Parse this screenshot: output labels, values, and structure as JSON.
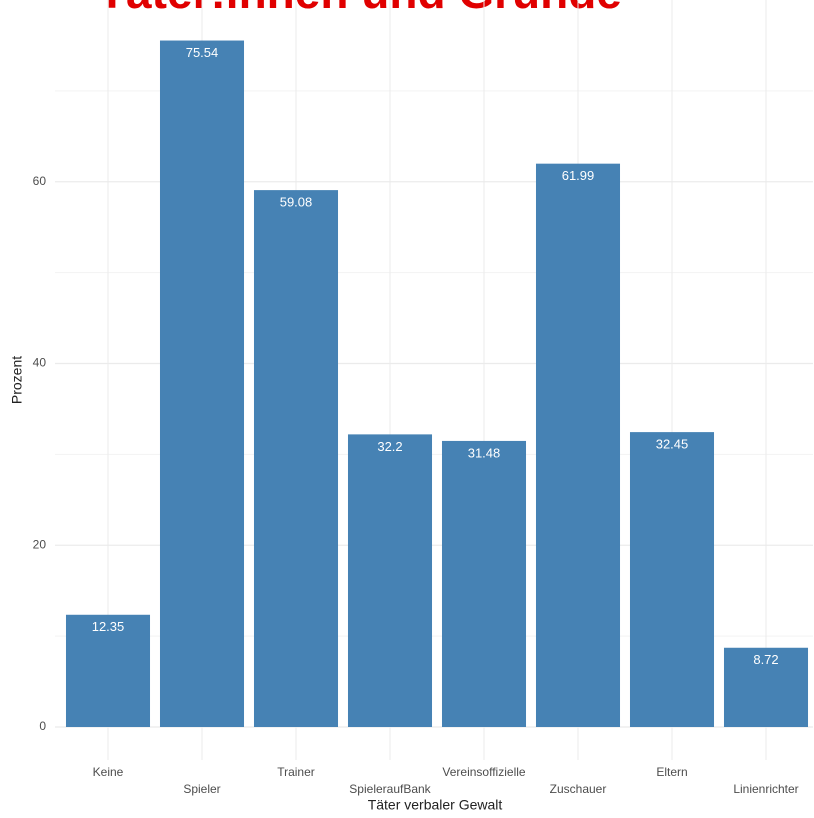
{
  "chart_data": {
    "type": "bar",
    "title": "Täter:innen und Gründe",
    "x_label": "Täter verbaler Gewalt",
    "y_label": "Prozent",
    "categories": [
      "Keine",
      "Spieler",
      "Trainer",
      "SpieleraufBank",
      "Vereinsoffizielle",
      "Zuschauer",
      "Eltern",
      "Linienrichter"
    ],
    "values": [
      12.35,
      75.54,
      59.08,
      32.2,
      31.48,
      61.99,
      32.45,
      8.72
    ],
    "color": "#4682b4",
    "ylim": [
      0,
      80
    ],
    "yticks": [
      0,
      20,
      40,
      60
    ],
    "y_minor_ticks": [
      10,
      30,
      50,
      70
    ],
    "grid": true
  }
}
